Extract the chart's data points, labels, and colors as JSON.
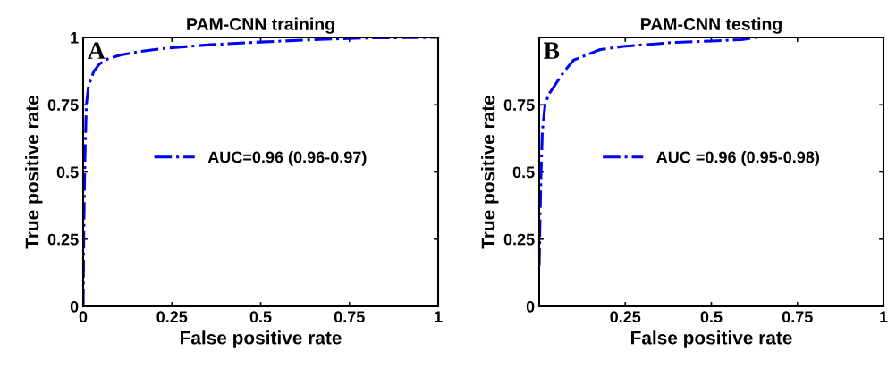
{
  "chart_data": [
    {
      "type": "line",
      "title": "PAM-CNN training",
      "xlabel": "False positive rate",
      "ylabel": "True positive rate",
      "annotations": [
        "A"
      ],
      "xlim": [
        0,
        1
      ],
      "ylim": [
        0,
        1
      ],
      "xticks": [
        0,
        0.25,
        0.5,
        0.75,
        1
      ],
      "yticks": [
        0,
        0.25,
        0.5,
        0.75,
        1
      ],
      "grid": false,
      "legend": "center",
      "line_style": "dashdot",
      "series": [
        {
          "name": "AUC=0.96 (0.96-0.97)",
          "color": "#0000ff",
          "x": [
            0,
            0.002,
            0.005,
            0.009,
            0.015,
            0.03,
            0.045,
            0.064,
            0.106,
            0.16,
            0.232,
            0.358,
            0.5,
            0.65,
            0.8,
            1
          ],
          "values": [
            0,
            0.3,
            0.55,
            0.75,
            0.82,
            0.874,
            0.9,
            0.918,
            0.935,
            0.948,
            0.96,
            0.973,
            0.983,
            0.992,
            0.998,
            1
          ]
        }
      ]
    },
    {
      "type": "line",
      "title": "PAM-CNN testing",
      "xlabel": "False positive rate",
      "ylabel": "True positive rate",
      "annotations": [
        "B"
      ],
      "xlim": [
        0,
        1
      ],
      "ylim": [
        0,
        1
      ],
      "xticks": [
        {
          "value": 0,
          "label": null
        },
        0.25,
        0.5,
        0.75,
        1
      ],
      "yticks": [
        0,
        0.25,
        0.5,
        0.75,
        {
          "value": 1,
          "label": null
        }
      ],
      "grid": false,
      "legend": "center",
      "line_style": "dashdot",
      "series": [
        {
          "name": "AUC =0.96 (0.95-0.98)",
          "color": "#0000ff",
          "x": [
            0,
            0.002,
            0.005,
            0.009,
            0.017,
            0.028,
            0.043,
            0.07,
            0.1,
            0.177,
            0.244,
            0.386,
            0.5,
            0.588,
            0.63
          ],
          "values": [
            0.151,
            0.3,
            0.48,
            0.65,
            0.75,
            0.79,
            0.818,
            0.87,
            0.916,
            0.955,
            0.967,
            0.981,
            0.987,
            0.992,
            1
          ]
        }
      ]
    }
  ]
}
